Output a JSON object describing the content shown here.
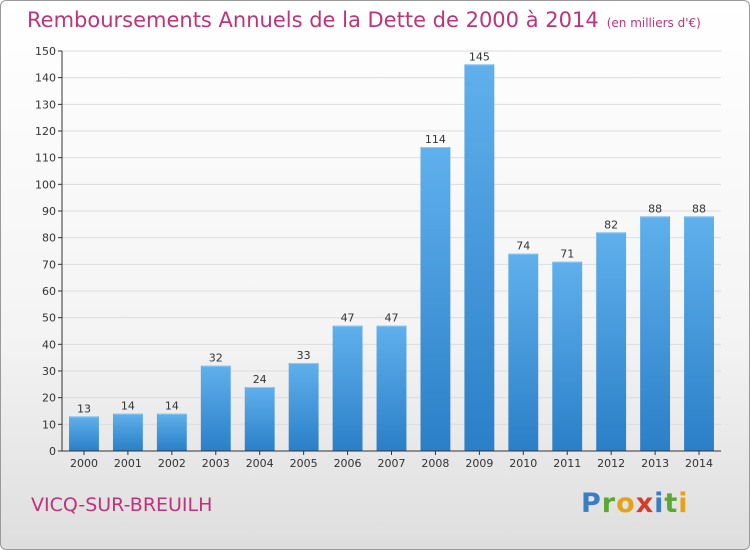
{
  "title": "Remboursements Annuels de la Dette de 2000 à 2014",
  "unit_note": "(en milliers d'€)",
  "city": "VICQ-SUR-BREUILH",
  "logo": {
    "letters": [
      "P",
      "r",
      "o",
      "x",
      "i",
      "t",
      "i"
    ]
  },
  "colors": {
    "title": "#c0327a",
    "bar_light": "#5fb0ec",
    "bar_dark": "#2a7fc7",
    "axis": "#333333",
    "grid": "#dcdcdc"
  },
  "chart_data": {
    "type": "bar",
    "categories": [
      "2000",
      "2001",
      "2002",
      "2003",
      "2004",
      "2005",
      "2006",
      "2007",
      "2008",
      "2009",
      "2010",
      "2011",
      "2012",
      "2013",
      "2014"
    ],
    "values": [
      13,
      14,
      14,
      32,
      24,
      33,
      47,
      47,
      114,
      145,
      74,
      71,
      82,
      88,
      88
    ],
    "data_labels": [
      "13",
      "14",
      "14",
      "32",
      "24",
      "33",
      "47",
      "47",
      "114",
      "145",
      "74",
      "71",
      "82",
      "88",
      "88"
    ],
    "y_ticks": [
      "0",
      "10",
      "20",
      "30",
      "40",
      "50",
      "60",
      "70",
      "80",
      "90",
      "100",
      "110",
      "120",
      "130",
      "140",
      "150"
    ],
    "ylim": [
      0,
      150
    ],
    "grid": true,
    "legend": "none"
  }
}
